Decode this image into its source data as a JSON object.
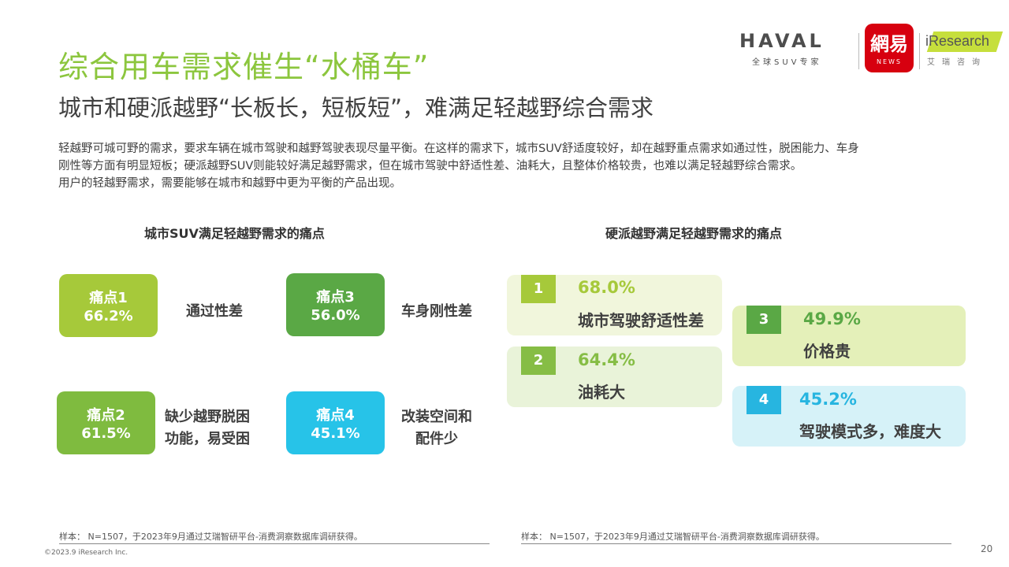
{
  "header": {
    "title": "综合用车需求催生“水桶车”",
    "subtitle": "城市和硬派越野“长板长，短板短”，难满足轻越野综合需求",
    "intro_lines": [
      "轻越野可城可野的需求，要求车辆在城市驾驶和越野驾驶表现尽量平衡。在这样的需求下，城市SUV舒适度较好，却在越野重点需求如通过性，脱困能力、车身",
      "刚性等方面有明显短板；硬派越野SUV则能较好满足越野需求，但在城市驾驶中舒适性差、油耗大，且整体价格较贵，也难以满足轻越野综合需求。",
      "用户的轻越野需求，需要能够在城市和越野中更为平衡的产品出现。"
    ]
  },
  "logos": {
    "haval": "HAVAL",
    "haval_sub": "全球SUV专家",
    "netease": "網易",
    "netease_sub": "NEWS",
    "iresearch": "iResearch",
    "iresearch_sub": "艾瑞咨询"
  },
  "left_panel": {
    "title": "城市SUV满足轻越野需求的痛点",
    "tiles": [
      {
        "name": "痛点1",
        "value": "66.2%",
        "label_lines": [
          "通过性差"
        ],
        "color": "#a6c93a"
      },
      {
        "name": "痛点2",
        "value": "61.5%",
        "label_lines": [
          "缺少越野脱困",
          "功能，易受困"
        ],
        "color": "#7fbb3f"
      },
      {
        "name": "痛点3",
        "value": "56.0%",
        "label_lines": [
          "车身刚性差"
        ],
        "color": "#5aa845"
      },
      {
        "name": "痛点4",
        "value": "45.1%",
        "label_lines": [
          "改装空间和",
          "配件少"
        ],
        "color": "#27c3e8"
      }
    ],
    "note": "样本： N=1507，于2023年9月通过艾瑞智研平台-消费洞察数据库调研获得。"
  },
  "right_panel": {
    "title": "硬派越野满足轻越野需求的痛点",
    "cards": [
      {
        "rank": "1",
        "value": "68.0%",
        "label": "城市驾驶舒适性差",
        "bg": "#f1f6dc",
        "accent": "#a6c93a"
      },
      {
        "rank": "2",
        "value": "64.4%",
        "label": "油耗大",
        "bg": "#e9f3d9",
        "accent": "#86bd45"
      },
      {
        "rank": "3",
        "value": "49.9%",
        "label": "价格贵",
        "bg": "#e4f0b9",
        "accent": "#5aa845"
      },
      {
        "rank": "4",
        "value": "45.2%",
        "label": "驾驶模式多，难度大",
        "bg": "#d6f2f8",
        "accent": "#27b5e0"
      }
    ],
    "note": "样本： N=1507，于2023年9月通过艾瑞智研平台-消费洞察数据库调研获得。"
  },
  "footer": {
    "copyright": "©2023.9 iResearch Inc.",
    "page_number": "20"
  }
}
